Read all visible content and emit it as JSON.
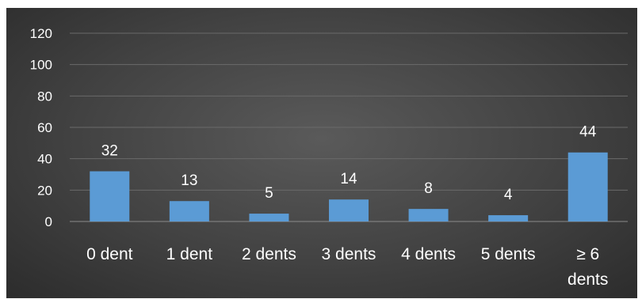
{
  "chart_data": {
    "type": "bar",
    "title": "",
    "xlabel": "",
    "ylabel": "",
    "categories": [
      "0 dent",
      "1 dent",
      "2 dents",
      "3 dents",
      "4 dents",
      "5 dents",
      "≥ 6 dents"
    ],
    "values": [
      32,
      13,
      5,
      14,
      8,
      4,
      44
    ],
    "data_labels": [
      "32",
      "13",
      "5",
      "14",
      "8",
      "4",
      "44"
    ],
    "yticks": [
      "0",
      "20",
      "40",
      "60",
      "80",
      "100",
      "120"
    ],
    "ylim": [
      0,
      120
    ],
    "grid": true,
    "legend": "none",
    "colors": {
      "bar": "#5b9bd5",
      "gridline": "#6a6a6a",
      "text": "#ffffff"
    }
  }
}
